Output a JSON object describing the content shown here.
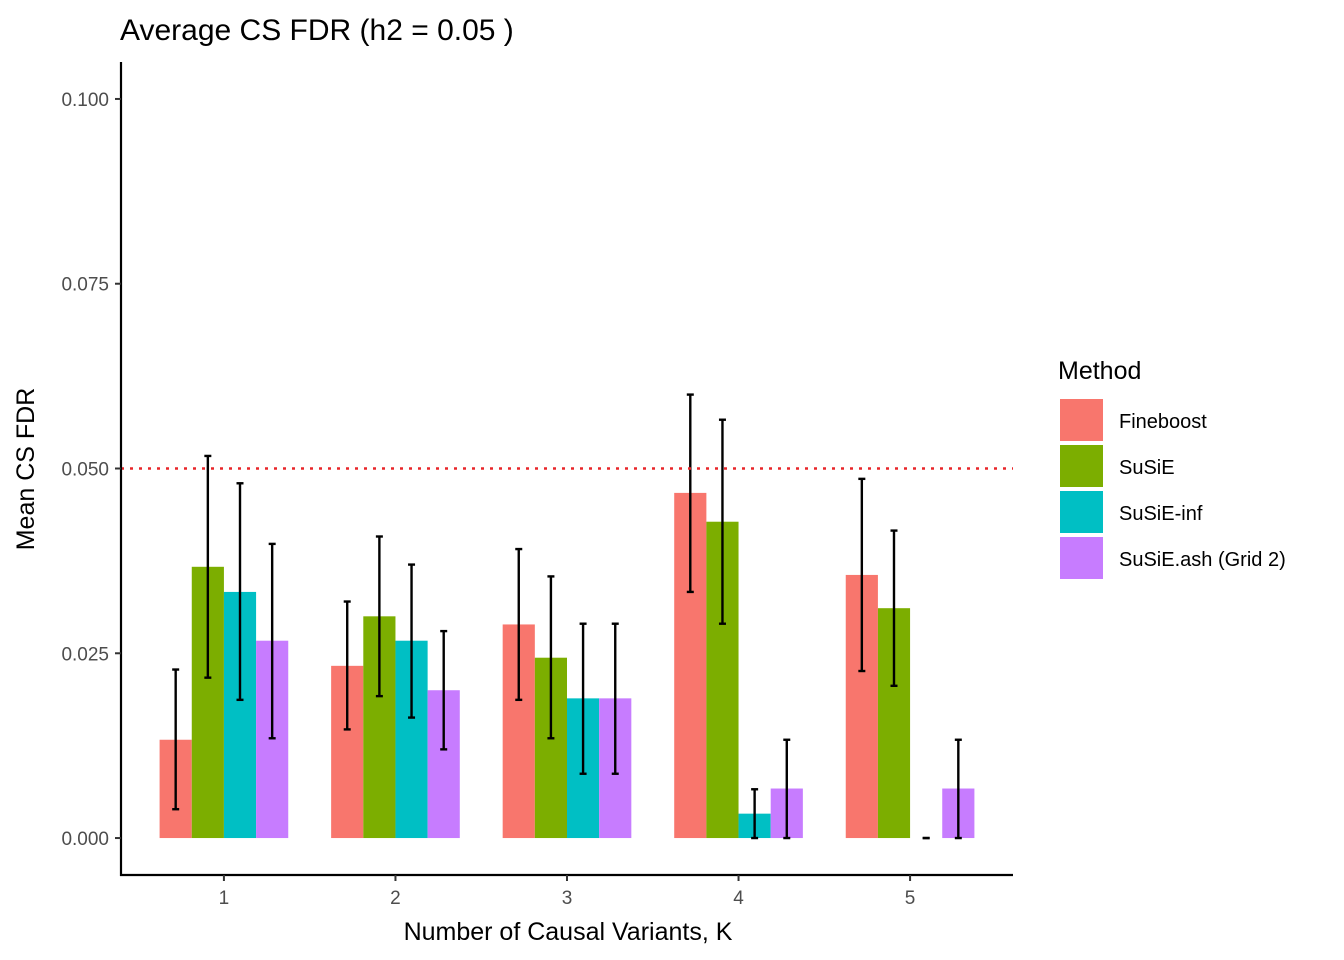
{
  "chart_data": {
    "type": "bar",
    "title": "Average CS FDR (h2 = 0.05 )",
    "xlabel": "Number of Causal Variants, K",
    "ylabel": "Mean CS FDR",
    "categories": [
      "1",
      "2",
      "3",
      "4",
      "5"
    ],
    "ylim": [
      -0.005,
      0.105
    ],
    "yticks": [
      "0.000",
      "0.025",
      "0.050",
      "0.075",
      "0.100"
    ],
    "ytick_values": [
      0,
      0.025,
      0.05,
      0.075,
      0.1
    ],
    "grid": false,
    "reference_line": {
      "y": 0.05,
      "style": "dotted",
      "color": "#e8262a"
    },
    "legend": {
      "title": "Method",
      "placement": "right"
    },
    "series": [
      {
        "name": "Fineboost",
        "color": "#f8766d",
        "values": [
          0.0133,
          0.0233,
          0.0289,
          0.0467,
          0.0356
        ],
        "err_low": [
          0.0039,
          0.0147,
          0.0187,
          0.0333,
          0.0226
        ],
        "err_high": [
          0.0228,
          0.032,
          0.0391,
          0.06,
          0.0486
        ]
      },
      {
        "name": "SuSiE",
        "color": "#7cae00",
        "values": [
          0.0367,
          0.03,
          0.0244,
          0.0428,
          0.0311
        ],
        "err_low": [
          0.0217,
          0.0192,
          0.0135,
          0.029,
          0.0206
        ],
        "err_high": [
          0.0517,
          0.0408,
          0.0354,
          0.0566,
          0.0416
        ]
      },
      {
        "name": "SuSiE-inf",
        "color": "#00bfc4",
        "values": [
          0.0333,
          0.0267,
          0.0189,
          0.0033,
          0.0
        ],
        "err_low": [
          0.0187,
          0.0163,
          0.0087,
          0.0,
          0.0
        ],
        "err_high": [
          0.048,
          0.037,
          0.029,
          0.0066,
          0.0
        ]
      },
      {
        "name": "SuSiE.ash (Grid 2)",
        "color": "#c77cff",
        "values": [
          0.0267,
          0.02,
          0.0189,
          0.0067,
          0.0067
        ],
        "err_low": [
          0.0135,
          0.012,
          0.0087,
          0.0,
          0.0
        ],
        "err_high": [
          0.0398,
          0.028,
          0.029,
          0.0133,
          0.0133
        ]
      }
    ]
  }
}
